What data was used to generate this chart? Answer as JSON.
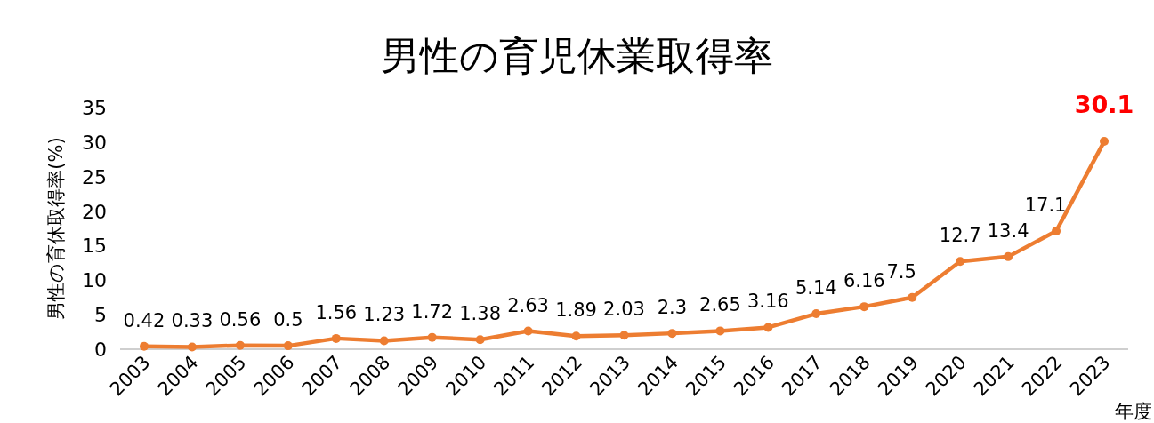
{
  "chart_data": {
    "type": "line",
    "title": "男性の育児休業取得率",
    "ylabel": "男性の育休取得率(%)",
    "xlabel": "年度",
    "categories": [
      "2003",
      "2004",
      "2005",
      "2006",
      "2007",
      "2008",
      "2009",
      "2010",
      "2011",
      "2012",
      "2013",
      "2014",
      "2015",
      "2016",
      "2017",
      "2018",
      "2019",
      "2020",
      "2021",
      "2022",
      "2023"
    ],
    "series": [
      {
        "color": "#ed7d31",
        "values": [
          0.42,
          0.33,
          0.56,
          0.5,
          1.56,
          1.23,
          1.72,
          1.38,
          2.63,
          1.89,
          2.03,
          2.3,
          2.65,
          3.16,
          5.14,
          6.16,
          7.5,
          12.7,
          13.4,
          17.1,
          30.1
        ],
        "value_labels": [
          "0.42",
          "0.33",
          "0.56",
          "0.5",
          "1.56",
          "1.23",
          "1.72",
          "1.38",
          "2.63",
          "1.89",
          "2.03",
          "2.3",
          "2.65",
          "3.16",
          "5.14",
          "6.16",
          "7.5",
          "12.7",
          "13.4",
          "17.1",
          null
        ]
      }
    ],
    "annotations": [
      {
        "text": "30.1",
        "x": "2023",
        "y": 30.1
      }
    ],
    "ylim": [
      0,
      35
    ],
    "yticks": [
      0,
      5,
      10,
      15,
      20,
      25,
      30,
      35
    ],
    "marker": "circle",
    "line_style": "solid",
    "grid": false
  }
}
